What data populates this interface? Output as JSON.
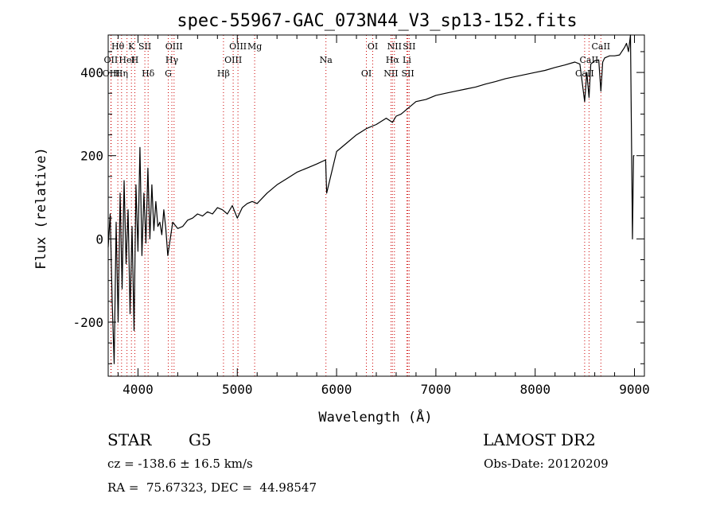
{
  "chart_data": {
    "type": "line",
    "title": "spec-55967-GAC_073N44_V3_sp13-152.fits",
    "xlabel": "Wavelength (Å)",
    "ylabel": "Flux (relative)",
    "xlim": [
      3700,
      9100
    ],
    "ylim": [
      -330,
      490
    ],
    "x_ticks": [
      4000,
      5000,
      6000,
      7000,
      8000,
      9000
    ],
    "y_ticks": [
      -200,
      0,
      200,
      400
    ],
    "grid": false,
    "line_color": "#000000",
    "marker_color": "#cc0000",
    "series": [
      {
        "x": [
          3700,
          3720,
          3740,
          3760,
          3780,
          3800,
          3820,
          3840,
          3860,
          3880,
          3900,
          3920,
          3940,
          3960,
          3980,
          4000,
          4020,
          4040,
          4060,
          4080,
          4100,
          4120,
          4140,
          4160,
          4180,
          4200,
          4220,
          4240,
          4260,
          4280,
          4300,
          4350,
          4400,
          4450,
          4500,
          4550,
          4600,
          4650,
          4700,
          4750,
          4800,
          4850,
          4900,
          4950,
          5000,
          5050,
          5100,
          5150,
          5200,
          5300,
          5400,
          5500,
          5600,
          5700,
          5800,
          5890,
          5900,
          6000,
          6100,
          6200,
          6300,
          6400,
          6500,
          6563,
          6600,
          6650,
          6700,
          6750,
          6800,
          6900,
          7000,
          7100,
          7200,
          7300,
          7400,
          7500,
          7600,
          7700,
          7800,
          7900,
          8000,
          8100,
          8200,
          8300,
          8400,
          8450,
          8498,
          8520,
          8542,
          8560,
          8600,
          8640,
          8662,
          8680,
          8700,
          8750,
          8800,
          8850,
          8900,
          8920,
          8940,
          8960,
          8980,
          8990,
          9000
        ],
        "y": [
          -20,
          60,
          -150,
          -300,
          40,
          -200,
          110,
          -120,
          140,
          -60,
          70,
          -180,
          30,
          -220,
          130,
          -30,
          220,
          -40,
          110,
          -10,
          170,
          0,
          130,
          20,
          90,
          30,
          40,
          10,
          70,
          25,
          -40,
          40,
          25,
          30,
          45,
          50,
          60,
          55,
          65,
          60,
          75,
          70,
          60,
          80,
          50,
          75,
          85,
          90,
          85,
          110,
          130,
          145,
          160,
          170,
          180,
          190,
          110,
          210,
          230,
          250,
          265,
          275,
          290,
          280,
          295,
          300,
          310,
          320,
          330,
          335,
          345,
          350,
          355,
          360,
          365,
          372,
          378,
          385,
          390,
          395,
          400,
          405,
          412,
          418,
          425,
          420,
          330,
          400,
          340,
          420,
          428,
          430,
          355,
          425,
          435,
          440,
          440,
          442,
          460,
          470,
          450,
          490,
          0,
          200,
          200
        ]
      }
    ],
    "line_markers": [
      {
        "label": "Hθ",
        "x": 3797
      },
      {
        "label": "OII",
        "x": 3727
      },
      {
        "label": "OIII",
        "x": 3730
      },
      {
        "label": "K",
        "x": 3934
      },
      {
        "label": "HeI",
        "x": 3889
      },
      {
        "label": "Hη",
        "x": 3835
      },
      {
        "label": "SII",
        "x": 4069
      },
      {
        "label": "H",
        "x": 3968
      },
      {
        "label": "Hδ",
        "x": 4102
      },
      {
        "label": "OIII",
        "x": 4363
      },
      {
        "label": "Hγ",
        "x": 4341
      },
      {
        "label": "G",
        "x": 4305
      },
      {
        "label": "OIII",
        "x": 5007
      },
      {
        "label": "OIII",
        "x": 4959
      },
      {
        "label": "Hβ",
        "x": 4861
      },
      {
        "label": "Mg",
        "x": 5175
      },
      {
        "label": "Na",
        "x": 5893
      },
      {
        "label": "OI",
        "x": 6300
      },
      {
        "label": "OI",
        "x": 6364
      },
      {
        "label": "Hα",
        "x": 6563
      },
      {
        "label": "SII",
        "x": 6717
      },
      {
        "label": "NII",
        "x": 6583
      },
      {
        "label": "Li",
        "x": 6708
      },
      {
        "label": "NII",
        "x": 6548
      },
      {
        "label": "SII",
        "x": 6731
      },
      {
        "label": "CaII",
        "x": 8542
      },
      {
        "label": "CaII",
        "x": 8498
      },
      {
        "label": "CaII",
        "x": 8662
      }
    ]
  },
  "info": {
    "object_type": "STAR",
    "subclass": "G5",
    "survey": "LAMOST DR2",
    "velocity": "cz = -138.6 ± 16.5 km/s",
    "obs_date": "Obs-Date: 20120209",
    "coords": "RA =  75.67323, DEC =  44.98547"
  }
}
